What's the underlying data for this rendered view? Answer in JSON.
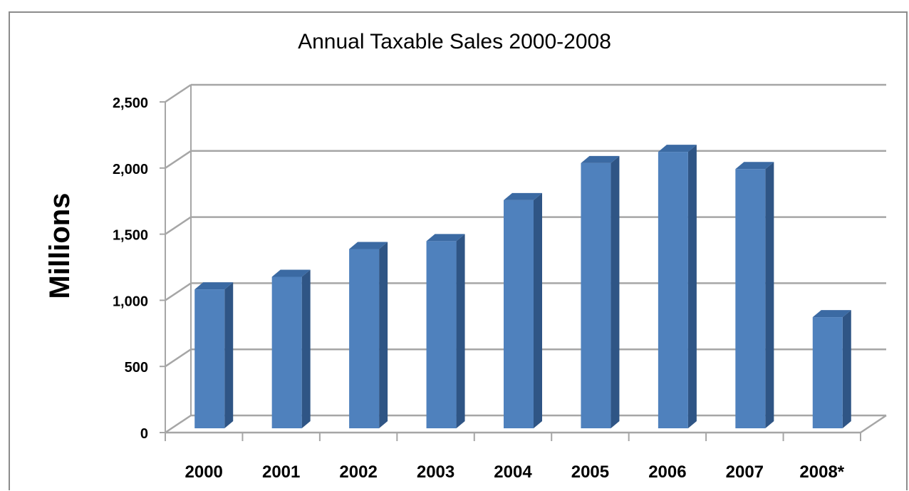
{
  "chart_data": {
    "type": "bar",
    "title": "Annual Taxable Sales 2000-2008",
    "ylabel": "Millions",
    "xlabel": "",
    "categories": [
      "2000",
      "2001",
      "2002",
      "2003",
      "2004",
      "2005",
      "2006",
      "2007",
      "2008*"
    ],
    "values": [
      1050,
      1145,
      1355,
      1415,
      1725,
      2005,
      2090,
      1960,
      840
    ],
    "ylim": [
      0,
      2500
    ],
    "yticks": [
      0,
      500,
      1000,
      1500,
      2000,
      2500
    ],
    "ytick_labels": [
      "0",
      "500",
      "1,000",
      "1,500",
      "2,000",
      "2,500"
    ],
    "grid": true,
    "bar_color": "#4f81bd",
    "bar_side_color": "#2f5585",
    "bar_top_color": "#3b6aa3",
    "gridline_color": "#a6a6a6"
  }
}
